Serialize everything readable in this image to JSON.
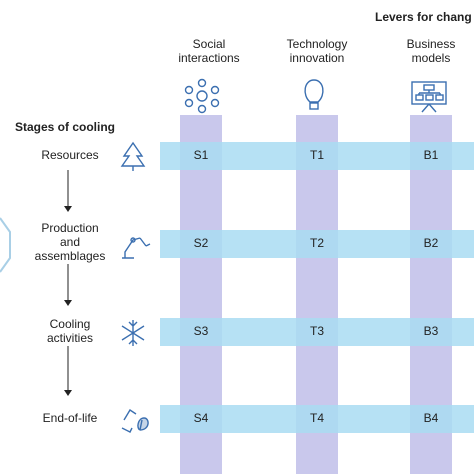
{
  "header": {
    "title": "Levers for chang",
    "stages_title": "Stages of cooling"
  },
  "levers": [
    {
      "lines": [
        "Social",
        "interactions"
      ]
    },
    {
      "lines": [
        "Technology",
        "innovation"
      ]
    },
    {
      "lines": [
        "Business",
        "models"
      ]
    }
  ],
  "stages": [
    {
      "lines": [
        "Resources"
      ]
    },
    {
      "lines": [
        "Production",
        "and",
        "assemblages"
      ]
    },
    {
      "lines": [
        "Cooling",
        "activities"
      ]
    },
    {
      "lines": [
        "End-of-life"
      ]
    }
  ],
  "cells": [
    [
      "S1",
      "T1",
      "B1"
    ],
    [
      "S2",
      "T2",
      "B2"
    ],
    [
      "S3",
      "T3",
      "B3"
    ],
    [
      "S4",
      "T4",
      "B4"
    ]
  ]
}
